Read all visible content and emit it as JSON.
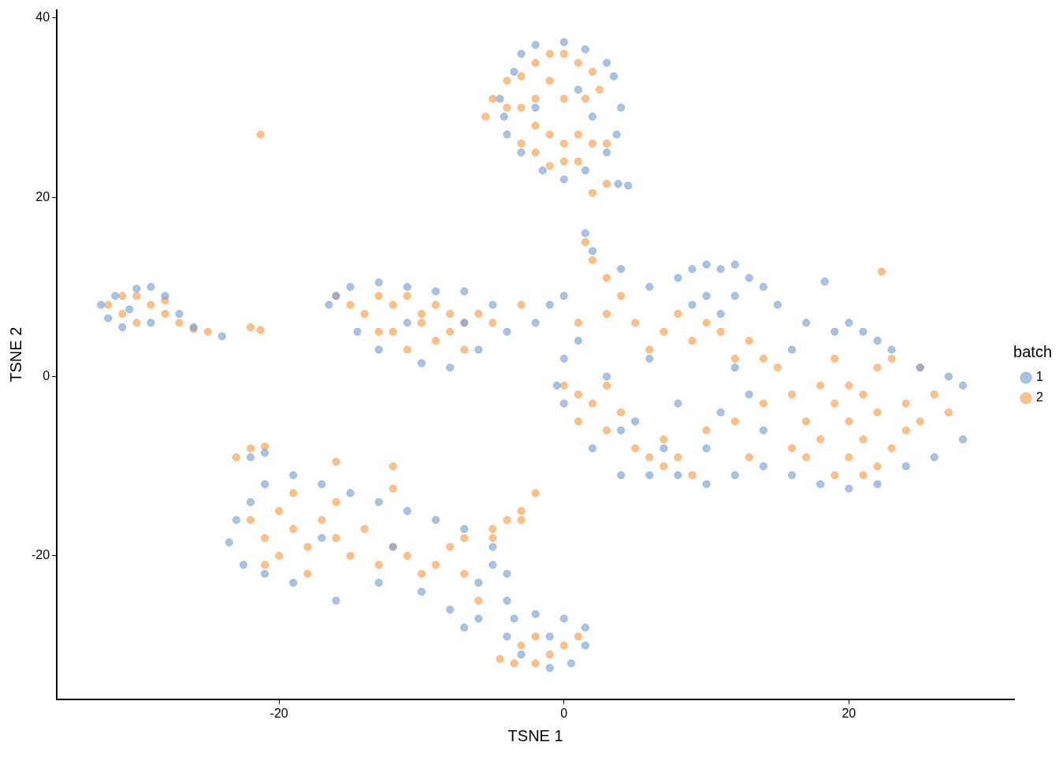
{
  "chart_data": {
    "type": "scatter",
    "x_label": "TSNE 1",
    "y_label": "TSNE 2",
    "legend_title": "batch",
    "legend": "right",
    "grid": false,
    "xlim": [
      -35.6,
      31.6
    ],
    "ylim": [
      -36,
      40.9
    ],
    "xticks": [
      -20,
      0,
      20
    ],
    "yticks": [
      -20,
      0,
      20,
      40
    ],
    "series": [
      {
        "name": "1",
        "color": "#7ba3d6",
        "marker": "circle",
        "values": [
          [
            -4.5,
            31
          ],
          [
            -4,
            27
          ],
          [
            -3.5,
            34
          ],
          [
            -3,
            36
          ],
          [
            -2,
            37
          ],
          [
            0,
            37.3
          ],
          [
            1.5,
            36.5
          ],
          [
            3,
            35
          ],
          [
            3.5,
            33.5
          ],
          [
            4,
            30
          ],
          [
            3.7,
            27
          ],
          [
            3,
            25
          ],
          [
            1.5,
            23
          ],
          [
            0,
            22
          ],
          [
            -1.5,
            23
          ],
          [
            -3,
            25
          ],
          [
            -4.2,
            29
          ],
          [
            2,
            29
          ],
          [
            -2,
            30
          ],
          [
            1,
            32
          ],
          [
            4.5,
            21.3
          ],
          [
            3.8,
            21.5
          ],
          [
            -32.5,
            8
          ],
          [
            -32,
            6.5
          ],
          [
            -31,
            5.5
          ],
          [
            -30,
            9.8
          ],
          [
            -29,
            10
          ],
          [
            -28,
            9
          ],
          [
            -27,
            7
          ],
          [
            -26,
            5.5
          ],
          [
            -29,
            6
          ],
          [
            -31.5,
            9
          ],
          [
            -24,
            4.5
          ],
          [
            -30.5,
            7.5
          ],
          [
            -16,
            9
          ],
          [
            -15,
            10
          ],
          [
            -13,
            10.5
          ],
          [
            -11,
            10
          ],
          [
            -9,
            9.5
          ],
          [
            -7,
            9.5
          ],
          [
            -5,
            8
          ],
          [
            -4,
            5
          ],
          [
            -6,
            3
          ],
          [
            -8,
            1
          ],
          [
            -10,
            1.5
          ],
          [
            -13,
            3
          ],
          [
            -14.5,
            5
          ],
          [
            -16.5,
            8
          ],
          [
            -2,
            6
          ],
          [
            -1,
            8
          ],
          [
            0,
            9
          ],
          [
            -11,
            6
          ],
          [
            -7,
            6
          ],
          [
            1.5,
            16
          ],
          [
            2,
            14
          ],
          [
            4,
            12
          ],
          [
            6,
            10
          ],
          [
            8,
            11
          ],
          [
            9,
            12
          ],
          [
            10,
            12.5
          ],
          [
            11,
            12
          ],
          [
            12,
            12.5
          ],
          [
            13,
            11
          ],
          [
            14,
            10
          ],
          [
            10,
            9
          ],
          [
            12,
            9
          ],
          [
            9,
            8
          ],
          [
            11,
            7
          ],
          [
            15,
            8
          ],
          [
            17,
            6
          ],
          [
            19,
            5
          ],
          [
            20,
            6
          ],
          [
            21,
            5
          ],
          [
            22,
            4
          ],
          [
            23,
            3
          ],
          [
            25,
            1
          ],
          [
            27,
            0
          ],
          [
            28,
            -1
          ],
          [
            28,
            -7
          ],
          [
            26,
            -9
          ],
          [
            24,
            -10
          ],
          [
            22,
            -12
          ],
          [
            20,
            -12.5
          ],
          [
            18,
            -12
          ],
          [
            16,
            -11
          ],
          [
            14,
            -10
          ],
          [
            12,
            -11
          ],
          [
            10,
            -12
          ],
          [
            8,
            -11
          ],
          [
            6,
            -11
          ],
          [
            4,
            -11
          ],
          [
            2,
            -8
          ],
          [
            0,
            -3
          ],
          [
            -0.5,
            -1
          ],
          [
            0,
            2
          ],
          [
            1,
            4
          ],
          [
            5,
            -5
          ],
          [
            8,
            -3
          ],
          [
            11,
            -4
          ],
          [
            13,
            -2
          ],
          [
            14,
            -6
          ],
          [
            10,
            -8
          ],
          [
            7,
            -8
          ],
          [
            4,
            -6
          ],
          [
            18.3,
            10.6
          ],
          [
            16,
            3
          ],
          [
            12,
            1
          ],
          [
            6,
            2
          ],
          [
            3,
            0
          ],
          [
            -23.5,
            -18.5
          ],
          [
            -23,
            -16
          ],
          [
            -22.5,
            -21
          ],
          [
            -22,
            -14
          ],
          [
            -21,
            -12
          ],
          [
            -19,
            -11
          ],
          [
            -17,
            -12
          ],
          [
            -15,
            -13
          ],
          [
            -13,
            -14
          ],
          [
            -11,
            -15
          ],
          [
            -9,
            -16
          ],
          [
            -7,
            -17
          ],
          [
            -5,
            -19
          ],
          [
            -4,
            -22
          ],
          [
            -4,
            -25
          ],
          [
            -6,
            -27
          ],
          [
            -8,
            -26
          ],
          [
            -10,
            -24
          ],
          [
            -13,
            -23
          ],
          [
            -16,
            -25
          ],
          [
            -19,
            -23
          ],
          [
            -21,
            -22
          ],
          [
            -22,
            -9
          ],
          [
            -21,
            -8.5
          ],
          [
            -6,
            -23
          ],
          [
            -5,
            -21
          ],
          [
            -7,
            -28
          ],
          [
            -17,
            -18
          ],
          [
            -12,
            -19
          ],
          [
            -3.5,
            -27
          ],
          [
            -2,
            -26.5
          ],
          [
            0,
            -27
          ],
          [
            1.5,
            -28
          ],
          [
            1.5,
            -30
          ],
          [
            0.5,
            -32
          ],
          [
            -1,
            -32.5
          ],
          [
            -3,
            -31
          ],
          [
            -4,
            -29
          ],
          [
            -1,
            -29
          ]
        ]
      },
      {
        "name": "2",
        "color": "#fda04f",
        "marker": "circle",
        "values": [
          [
            -5.5,
            29
          ],
          [
            -5,
            31
          ],
          [
            -4,
            33
          ],
          [
            -3,
            33.5
          ],
          [
            -2,
            35
          ],
          [
            -1,
            36
          ],
          [
            0,
            36
          ],
          [
            1,
            35
          ],
          [
            2,
            34
          ],
          [
            2.5,
            32
          ],
          [
            1.5,
            31
          ],
          [
            0,
            31
          ],
          [
            -1,
            33
          ],
          [
            -2,
            31
          ],
          [
            -3,
            30
          ],
          [
            -4,
            30
          ],
          [
            -2,
            28
          ],
          [
            -1,
            27
          ],
          [
            0,
            26
          ],
          [
            1,
            27
          ],
          [
            2,
            26
          ],
          [
            3,
            26
          ],
          [
            0,
            24
          ],
          [
            -1,
            23.5
          ],
          [
            1,
            24
          ],
          [
            -3,
            26
          ],
          [
            -2,
            25
          ],
          [
            3,
            21.5
          ],
          [
            2,
            20.5
          ],
          [
            -21.3,
            27
          ],
          [
            -32,
            8
          ],
          [
            -31,
            7
          ],
          [
            -30,
            9
          ],
          [
            -29,
            8
          ],
          [
            -28,
            7
          ],
          [
            -27,
            6
          ],
          [
            -26,
            5.3
          ],
          [
            -25,
            5
          ],
          [
            -30,
            6
          ],
          [
            -31,
            9
          ],
          [
            -28,
            8.5
          ],
          [
            -22,
            5.5
          ],
          [
            -21.3,
            5.2
          ],
          [
            -16,
            9
          ],
          [
            -15,
            8
          ],
          [
            -14,
            7
          ],
          [
            -13,
            9
          ],
          [
            -12,
            8
          ],
          [
            -11,
            9
          ],
          [
            -10,
            7
          ],
          [
            -9,
            8
          ],
          [
            -8,
            7
          ],
          [
            -7,
            6
          ],
          [
            -6,
            7
          ],
          [
            -8,
            5
          ],
          [
            -9,
            4
          ],
          [
            -11,
            3
          ],
          [
            -12,
            5
          ],
          [
            -13,
            5
          ],
          [
            -10,
            6
          ],
          [
            -7,
            3
          ],
          [
            -5,
            6
          ],
          [
            -3,
            8
          ],
          [
            1.5,
            15
          ],
          [
            2,
            13
          ],
          [
            3,
            11
          ],
          [
            4,
            9
          ],
          [
            3,
            7
          ],
          [
            5,
            6
          ],
          [
            7,
            5
          ],
          [
            9,
            4
          ],
          [
            11,
            5
          ],
          [
            13,
            4
          ],
          [
            8,
            7
          ],
          [
            10,
            6
          ],
          [
            6,
            3
          ],
          [
            1,
            6
          ],
          [
            0,
            -1
          ],
          [
            1,
            -2
          ],
          [
            2,
            -3
          ],
          [
            3,
            -1
          ],
          [
            4,
            -4
          ],
          [
            1,
            -5
          ],
          [
            3,
            -6
          ],
          [
            6,
            -9
          ],
          [
            7,
            -10
          ],
          [
            8,
            -9
          ],
          [
            9,
            -11
          ],
          [
            5,
            -8
          ],
          [
            7,
            -7
          ],
          [
            10,
            -6
          ],
          [
            12,
            -5
          ],
          [
            14,
            -3
          ],
          [
            16,
            -2
          ],
          [
            18,
            -1
          ],
          [
            17,
            -5
          ],
          [
            19,
            -3
          ],
          [
            20,
            -5
          ],
          [
            21,
            -7
          ],
          [
            22,
            -4
          ],
          [
            20,
            -9
          ],
          [
            22,
            -10
          ],
          [
            19,
            -11
          ],
          [
            23,
            -8
          ],
          [
            24,
            -3
          ],
          [
            25,
            -5
          ],
          [
            26,
            -2
          ],
          [
            27,
            -4
          ],
          [
            24,
            -6
          ],
          [
            21,
            -2
          ],
          [
            19,
            2
          ],
          [
            22,
            1
          ],
          [
            23,
            2
          ],
          [
            15,
            1
          ],
          [
            13,
            -9
          ],
          [
            17,
            -9
          ],
          [
            16,
            -8
          ],
          [
            12,
            2
          ],
          [
            22.3,
            11.7
          ],
          [
            18,
            -7
          ],
          [
            20,
            -1
          ],
          [
            21,
            -11
          ],
          [
            14,
            2
          ],
          [
            25,
            1
          ],
          [
            -23,
            -9
          ],
          [
            -22,
            -8
          ],
          [
            -21,
            -7.8
          ],
          [
            -22,
            -16
          ],
          [
            -21,
            -18
          ],
          [
            -20,
            -15
          ],
          [
            -19,
            -17
          ],
          [
            -18,
            -19
          ],
          [
            -17,
            -16
          ],
          [
            -16,
            -18
          ],
          [
            -15,
            -20
          ],
          [
            -14,
            -17
          ],
          [
            -13,
            -21
          ],
          [
            -12,
            -19
          ],
          [
            -11,
            -20
          ],
          [
            -10,
            -22
          ],
          [
            -9,
            -21
          ],
          [
            -8,
            -19
          ],
          [
            -7,
            -22
          ],
          [
            -6,
            -25
          ],
          [
            -20,
            -20
          ],
          [
            -18,
            -22
          ],
          [
            -16,
            -14
          ],
          [
            -12,
            -10
          ],
          [
            -12,
            -12.5
          ],
          [
            -16,
            -9.5
          ],
          [
            -7,
            -18
          ],
          [
            -5,
            -17
          ],
          [
            -4,
            -16
          ],
          [
            -3,
            -15
          ],
          [
            -2,
            -13
          ],
          [
            -3,
            -16
          ],
          [
            -5,
            -18
          ],
          [
            -19,
            -13
          ],
          [
            -21,
            -21
          ],
          [
            -4.5,
            -31.5
          ],
          [
            -3,
            -30
          ],
          [
            -2,
            -29
          ],
          [
            -1,
            -31
          ],
          [
            0,
            -30
          ],
          [
            1,
            -29
          ],
          [
            -2,
            -32
          ],
          [
            -3.5,
            -32
          ]
        ]
      }
    ]
  }
}
